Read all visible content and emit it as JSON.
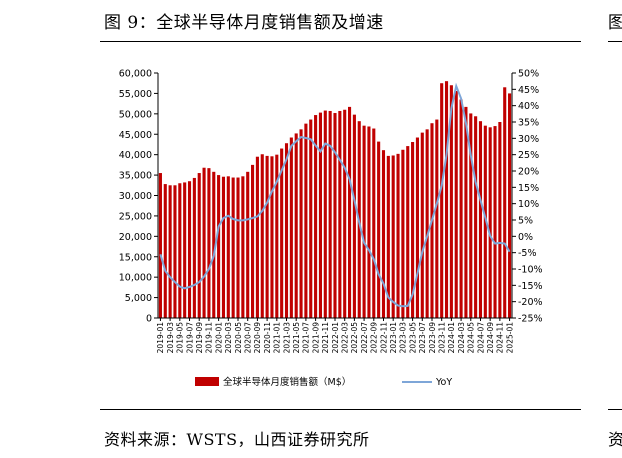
{
  "header": {
    "title": "图 9：全球半导体月度销售额及增速",
    "next_title_fragment": "图"
  },
  "footer": {
    "source": "资料来源：WSTS，山西证券研究所",
    "next_source_fragment": "资"
  },
  "chart_data": {
    "type": "bar",
    "title": "全球半导体月度销售额及增速",
    "legend": [
      {
        "name": "全球半导体月度销售额（M$）",
        "kind": "bar",
        "color": "#c00000"
      },
      {
        "name": "YoY",
        "kind": "line",
        "color": "#7ea6d8"
      }
    ],
    "left_axis": {
      "min": 0,
      "max": 60000,
      "step": 5000,
      "tick_labels": [
        "0",
        "5,000",
        "10,000",
        "15,000",
        "20,000",
        "25,000",
        "30,000",
        "35,000",
        "40,000",
        "45,000",
        "50,000",
        "55,000",
        "60,000"
      ]
    },
    "right_axis": {
      "min": -25,
      "max": 50,
      "step": 5,
      "tick_labels": [
        "-25%",
        "-20%",
        "-15%",
        "-10%",
        "-5%",
        "0%",
        "5%",
        "10%",
        "15%",
        "20%",
        "25%",
        "30%",
        "35%",
        "40%",
        "45%",
        "50%"
      ]
    },
    "x_tick_labels": [
      "2019-01",
      "2019-03",
      "2019-05",
      "2019-07",
      "2019-09",
      "2019-11",
      "2020-01",
      "2020-03",
      "2020-05",
      "2020-07",
      "2020-09",
      "2020-11",
      "2021-01",
      "2021-03",
      "2021-05",
      "2021-07",
      "2021-09",
      "2021-11",
      "2022-01",
      "2022-03",
      "2022-05",
      "2022-07",
      "2022-09",
      "2022-11",
      "2023-01",
      "2023-03",
      "2023-05",
      "2023-07",
      "2023-09",
      "2023-11",
      "2024-01",
      "2024-03",
      "2024-05",
      "2024-07",
      "2024-09",
      "2024-11",
      "2025-01"
    ],
    "series": [
      {
        "name": "全球半导体月度销售额（M$）",
        "type": "bar",
        "values": [
          35500,
          32800,
          32500,
          32500,
          33000,
          33200,
          33500,
          34300,
          35500,
          36800,
          36700,
          35800,
          35000,
          34600,
          34700,
          34400,
          34400,
          34700,
          35800,
          37500,
          39500,
          40100,
          39700,
          39600,
          40000,
          41500,
          42800,
          44200,
          45200,
          46200,
          47600,
          48600,
          49700,
          50300,
          50800,
          50700,
          50200,
          50700,
          51000,
          51700,
          49800,
          48200,
          47100,
          46900,
          46400,
          43200,
          41100,
          39700,
          39800,
          40200,
          41200,
          42100,
          43100,
          44200,
          45400,
          46200,
          47700,
          48600,
          57500,
          58000,
          57000,
          55600,
          53500,
          51700,
          50100,
          49400,
          48200,
          47100,
          46700,
          47000,
          48000,
          56500,
          55000
        ]
      },
      {
        "name": "YoY",
        "type": "line",
        "values": [
          -5.5,
          -10.6,
          -12.5,
          -14,
          -15.4,
          -15.9,
          -15.5,
          -14.9,
          -14,
          -12.3,
          -10,
          -6,
          3,
          5.6,
          6.3,
          5.3,
          4.9,
          4.9,
          5.2,
          5.6,
          6.1,
          7.8,
          10.3,
          13.8,
          16.7,
          20.2,
          23.6,
          27.7,
          29.1,
          30.4,
          30.1,
          29.7,
          27.8,
          26,
          28.4,
          27.7,
          25.7,
          23.4,
          21,
          17.5,
          11.1,
          4.2,
          -2,
          -4.2,
          -7,
          -11.6,
          -14.5,
          -18.7,
          -20.1,
          -21.2,
          -21.4,
          -21.3,
          -17.8,
          -11.4,
          -4.7,
          0,
          5,
          10,
          15.5,
          25,
          39.2,
          46,
          42.2,
          34.7,
          24.8,
          16.6,
          11.1,
          5.7,
          0.1,
          -2.2,
          -2,
          -2.2,
          -4.7
        ]
      }
    ]
  }
}
